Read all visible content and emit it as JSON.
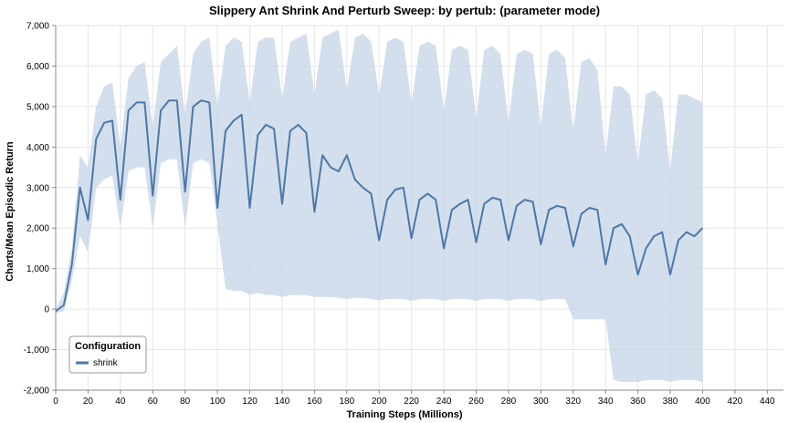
{
  "chart_data": {
    "type": "line",
    "title": "Slippery Ant Shrink And Perturb Sweep: by pertub: (parameter mode)",
    "xlabel": "Training Steps (Millions)",
    "ylabel": "Charts/Mean Episodic Return",
    "xlim": [
      0,
      450
    ],
    "ylim": [
      -2000,
      7000
    ],
    "x_ticks": [
      0,
      20,
      40,
      60,
      80,
      100,
      120,
      140,
      160,
      180,
      200,
      220,
      240,
      260,
      280,
      300,
      320,
      340,
      360,
      380,
      400,
      420,
      440
    ],
    "y_ticks": [
      -2000,
      -1000,
      0,
      1000,
      2000,
      3000,
      4000,
      5000,
      6000,
      7000
    ],
    "y_tick_labels": [
      "-2,000",
      "-1,000",
      "0",
      "1,000",
      "2,000",
      "3,000",
      "4,000",
      "5,000",
      "6,000",
      "7,000"
    ],
    "grid": true,
    "legend": {
      "title": "Configuration",
      "position": "bottom-left"
    },
    "series": [
      {
        "name": "shrink",
        "color": "#4c78a8",
        "band_color": "#c6d4e7",
        "x": [
          0,
          5,
          10,
          15,
          20,
          25,
          30,
          35,
          40,
          45,
          50,
          55,
          60,
          65,
          70,
          75,
          80,
          85,
          90,
          95,
          100,
          105,
          110,
          115,
          120,
          125,
          130,
          135,
          140,
          145,
          150,
          155,
          160,
          165,
          170,
          175,
          180,
          185,
          190,
          195,
          200,
          205,
          210,
          215,
          220,
          225,
          230,
          235,
          240,
          245,
          250,
          255,
          260,
          265,
          270,
          275,
          280,
          285,
          290,
          295,
          300,
          305,
          310,
          315,
          320,
          325,
          330,
          335,
          340,
          345,
          350,
          355,
          360,
          365,
          370,
          375,
          380,
          385,
          390,
          395,
          400
        ],
        "mean": [
          -50,
          100,
          1100,
          3000,
          2200,
          4200,
          4600,
          4650,
          2700,
          4900,
          5100,
          5100,
          2800,
          4900,
          5150,
          5150,
          2900,
          5000,
          5150,
          5100,
          2500,
          4400,
          4650,
          4800,
          2500,
          4300,
          4550,
          4450,
          2600,
          4400,
          4550,
          4350,
          2400,
          3800,
          3500,
          3400,
          3800,
          3200,
          3000,
          2850,
          1700,
          2700,
          2950,
          3000,
          1750,
          2700,
          2850,
          2700,
          1500,
          2450,
          2600,
          2700,
          1650,
          2600,
          2750,
          2700,
          1700,
          2550,
          2700,
          2650,
          1600,
          2450,
          2550,
          2500,
          1550,
          2350,
          2500,
          2450,
          1100,
          2000,
          2100,
          1800,
          850,
          1500,
          1800,
          1900,
          850,
          1700,
          1900,
          1800,
          2000
        ],
        "upper": [
          0,
          400,
          1500,
          3800,
          3500,
          5000,
          5500,
          5600,
          4000,
          5700,
          6000,
          6100,
          4500,
          6100,
          6300,
          6500,
          4800,
          6300,
          6600,
          6700,
          5000,
          6500,
          6700,
          6600,
          5100,
          6600,
          6700,
          6700,
          5200,
          6600,
          6700,
          6800,
          5300,
          6700,
          6800,
          6900,
          5400,
          6700,
          6800,
          6600,
          5300,
          6600,
          6700,
          6600,
          5100,
          6500,
          6600,
          6500,
          4900,
          6400,
          6500,
          6400,
          4700,
          6400,
          6500,
          6300,
          4600,
          6300,
          6400,
          6300,
          4500,
          6300,
          6400,
          6200,
          4400,
          6100,
          6200,
          5900,
          3800,
          5500,
          5500,
          5300,
          3600,
          5300,
          5400,
          5200,
          3400,
          5300,
          5300,
          5200,
          5100
        ],
        "lower": [
          -100,
          -50,
          700,
          1800,
          1400,
          3000,
          3200,
          3300,
          2000,
          3400,
          3500,
          3500,
          2000,
          3600,
          3700,
          3700,
          2000,
          3600,
          3700,
          3600,
          2100,
          500,
          450,
          450,
          350,
          400,
          350,
          350,
          300,
          350,
          350,
          350,
          300,
          300,
          300,
          280,
          250,
          280,
          280,
          250,
          220,
          250,
          250,
          250,
          200,
          250,
          250,
          250,
          200,
          250,
          250,
          250,
          200,
          250,
          250,
          250,
          200,
          250,
          250,
          250,
          200,
          250,
          250,
          250,
          -250,
          -250,
          -250,
          -250,
          -250,
          -1750,
          -1800,
          -1800,
          -1800,
          -1750,
          -1750,
          -1750,
          -1800,
          -1750,
          -1750,
          -1750,
          -1800
        ]
      }
    ]
  }
}
